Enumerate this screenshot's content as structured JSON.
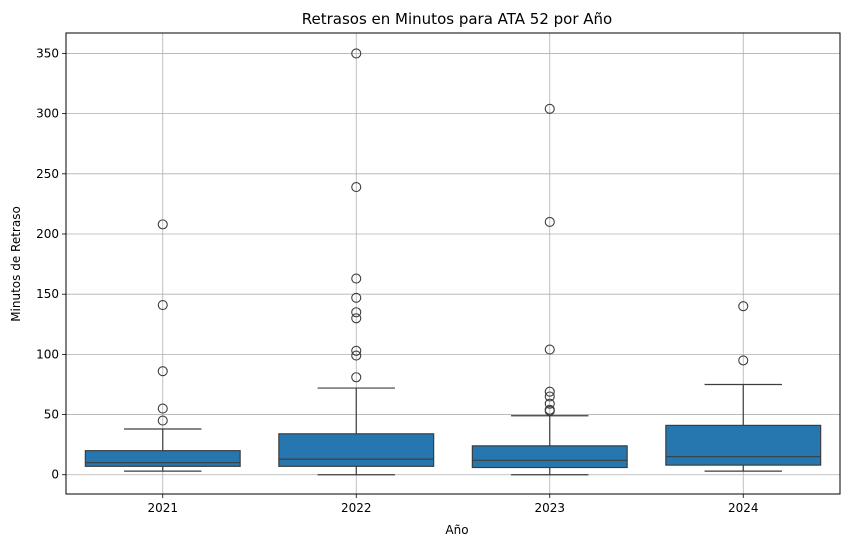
{
  "chart_data": {
    "type": "box",
    "title": "Retrasos en Minutos para ATA 52 por Año",
    "xlabel": "Año",
    "ylabel": "Minutos de Retraso",
    "ylim": [
      -16,
      367
    ],
    "yticks": [
      0,
      50,
      100,
      150,
      200,
      250,
      300,
      350
    ],
    "grid": true,
    "box_color": "#2677b0",
    "categories": [
      "2021",
      "2022",
      "2023",
      "2024"
    ],
    "boxes": [
      {
        "category": "2021",
        "whisker_low": 3,
        "q1": 7,
        "median": 10,
        "q3": 20,
        "whisker_high": 38,
        "outliers": [
          45,
          55,
          86,
          141,
          208
        ]
      },
      {
        "category": "2022",
        "whisker_low": 0,
        "q1": 7,
        "median": 13,
        "q3": 34,
        "whisker_high": 72,
        "outliers": [
          81,
          99,
          103,
          130,
          135,
          147,
          163,
          239,
          350
        ]
      },
      {
        "category": "2023",
        "whisker_low": 0,
        "q1": 6,
        "median": 12,
        "q3": 24,
        "whisker_high": 49,
        "outliers": [
          53,
          54,
          59,
          65,
          69,
          104,
          210,
          304
        ]
      },
      {
        "category": "2024",
        "whisker_low": 3,
        "q1": 8,
        "median": 15,
        "q3": 41,
        "whisker_high": 75,
        "outliers": [
          95,
          140
        ]
      }
    ]
  }
}
